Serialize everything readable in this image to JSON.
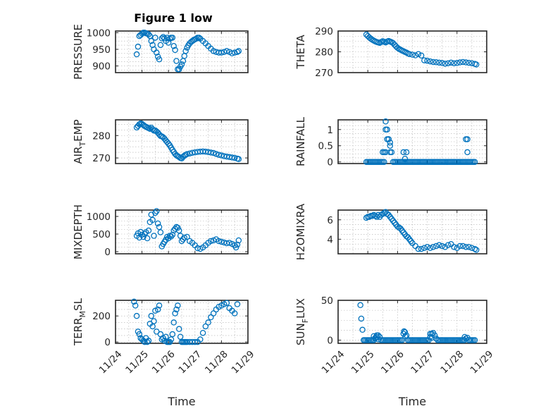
{
  "figure_title": "Figure 1 low",
  "colors": {
    "marker": "#0072bd",
    "axes": "#262626",
    "grid": "#b0b0b0"
  },
  "chart_data": [
    {
      "type": "scatter",
      "title": "Figure 1 low",
      "xlabel": "",
      "ylabel": "PRESSURE",
      "xlim": [
        0,
        5
      ],
      "ylim": [
        880,
        1005
      ],
      "yticks": [
        900,
        950,
        1000
      ],
      "x": [
        0.8,
        0.85,
        0.9,
        0.95,
        1.0,
        1.05,
        1.1,
        1.15,
        1.2,
        1.25,
        1.3,
        1.35,
        1.4,
        1.45,
        1.5,
        1.55,
        1.6,
        1.65,
        1.7,
        1.75,
        1.8,
        1.85,
        1.9,
        1.95,
        2.0,
        2.05,
        2.1,
        2.15,
        2.2,
        2.25,
        2.3,
        2.35,
        2.4,
        2.45,
        2.5,
        2.55,
        2.6,
        2.65,
        2.7,
        2.75,
        2.8,
        2.85,
        2.9,
        2.95,
        3.0,
        3.05,
        3.1,
        3.15,
        3.2,
        3.3,
        3.4,
        3.5,
        3.6,
        3.7,
        3.8,
        3.9,
        4.0,
        4.1,
        4.2,
        4.3,
        4.4,
        4.5,
        4.6,
        4.65
      ],
      "y": [
        935,
        958,
        990,
        993,
        997,
        1000,
        1000,
        998,
        997,
        995,
        990,
        975,
        963,
        950,
        985,
        940,
        928,
        920,
        963,
        983,
        987,
        983,
        975,
        985,
        970,
        982,
        985,
        985,
        960,
        948,
        915,
        890,
        890,
        898,
        905,
        915,
        930,
        945,
        955,
        962,
        968,
        972,
        975,
        978,
        980,
        982,
        985,
        985,
        982,
        975,
        968,
        960,
        952,
        945,
        942,
        940,
        940,
        942,
        945,
        942,
        938,
        940,
        942,
        945
      ]
    },
    {
      "type": "scatter",
      "title": "",
      "xlabel": "",
      "ylabel": "THETA",
      "xlim": [
        0,
        5
      ],
      "ylim": [
        270,
        290
      ],
      "yticks": [
        270,
        280,
        290
      ],
      "x": [
        0.95,
        1.0,
        1.05,
        1.1,
        1.15,
        1.2,
        1.25,
        1.3,
        1.35,
        1.4,
        1.45,
        1.5,
        1.55,
        1.6,
        1.65,
        1.7,
        1.75,
        1.8,
        1.85,
        1.9,
        1.95,
        2.0,
        2.05,
        2.1,
        2.15,
        2.2,
        2.25,
        2.3,
        2.35,
        2.4,
        2.5,
        2.6,
        2.7,
        2.8,
        2.9,
        3.0,
        3.1,
        3.2,
        3.3,
        3.4,
        3.5,
        3.6,
        3.7,
        3.8,
        3.9,
        4.0,
        4.1,
        4.2,
        4.3,
        4.4,
        4.5,
        4.6,
        4.65
      ],
      "y": [
        288.3,
        287.6,
        286.9,
        286.3,
        285.8,
        285.4,
        285.0,
        284.7,
        284.5,
        284.3,
        284.7,
        285.1,
        284.8,
        284.5,
        284.9,
        285.2,
        284.9,
        284.6,
        284.2,
        283.4,
        282.6,
        281.9,
        281.4,
        281.0,
        280.6,
        280.3,
        279.9,
        279.6,
        279.2,
        278.9,
        278.6,
        278.3,
        278.9,
        278.2,
        275.9,
        275.7,
        275.4,
        275.1,
        275.0,
        274.8,
        274.6,
        274.3,
        274.5,
        274.8,
        274.5,
        274.6,
        274.9,
        275.1,
        274.9,
        274.7,
        274.5,
        274.2,
        273.9
      ]
    },
    {
      "type": "scatter",
      "title": "",
      "xlabel": "",
      "ylabel": "AIR_TEMP",
      "xlim": [
        0,
        5
      ],
      "ylim": [
        267.5,
        287
      ],
      "yticks": [
        270,
        280
      ],
      "x": [
        0.8,
        0.85,
        0.9,
        0.95,
        1.0,
        1.05,
        1.1,
        1.15,
        1.2,
        1.25,
        1.3,
        1.35,
        1.4,
        1.45,
        1.5,
        1.55,
        1.6,
        1.65,
        1.7,
        1.75,
        1.8,
        1.85,
        1.9,
        1.95,
        2.0,
        2.05,
        2.1,
        2.15,
        2.2,
        2.25,
        2.3,
        2.35,
        2.4,
        2.45,
        2.5,
        2.55,
        2.6,
        2.65,
        2.7,
        2.8,
        2.9,
        3.0,
        3.1,
        3.2,
        3.3,
        3.4,
        3.5,
        3.6,
        3.7,
        3.8,
        3.9,
        4.0,
        4.1,
        4.2,
        4.3,
        4.4,
        4.5,
        4.6,
        4.65
      ],
      "y": [
        283.6,
        284.3,
        285.0,
        285.4,
        285.2,
        284.7,
        284.2,
        283.9,
        283.6,
        283.3,
        283.0,
        283.5,
        282.8,
        282.2,
        282.3,
        281.8,
        281.3,
        280.5,
        279.8,
        279.6,
        279.2,
        278.6,
        277.8,
        277.1,
        276.4,
        275.6,
        274.6,
        273.6,
        272.7,
        271.8,
        271.2,
        270.8,
        270.4,
        270.0,
        269.8,
        270.5,
        271.0,
        271.4,
        271.7,
        272.0,
        272.3,
        272.5,
        272.7,
        272.8,
        272.9,
        272.8,
        272.6,
        272.4,
        272.2,
        271.8,
        271.4,
        271.1,
        270.8,
        270.6,
        270.4,
        270.2,
        270.0,
        269.7,
        269.5
      ]
    },
    {
      "type": "scatter",
      "title": "",
      "xlabel": "",
      "ylabel": "RAINFALL",
      "xlim": [
        0,
        5
      ],
      "ylim": [
        -0.05,
        1.3
      ],
      "yticks": [
        0,
        0.5,
        1
      ],
      "x": [
        0.95,
        1.0,
        1.05,
        1.1,
        1.15,
        1.2,
        1.25,
        1.3,
        1.35,
        1.4,
        1.45,
        1.5,
        1.55,
        1.6,
        1.6,
        1.6,
        1.65,
        1.7,
        1.75,
        1.8,
        1.85,
        1.9,
        1.95,
        2.0,
        2.05,
        2.1,
        2.15,
        2.2,
        2.25,
        2.3,
        2.35,
        2.4,
        2.45,
        2.5,
        2.55,
        2.6,
        2.65,
        2.7,
        2.75,
        2.8,
        2.85,
        2.9,
        2.95,
        3.0,
        3.05,
        3.1,
        3.15,
        3.2,
        3.25,
        3.3,
        3.35,
        3.4,
        3.45,
        3.5,
        3.55,
        3.6,
        3.65,
        3.7,
        3.75,
        3.8,
        3.85,
        3.9,
        3.95,
        4.0,
        4.05,
        4.1,
        4.15,
        4.2,
        4.25,
        4.3,
        4.35,
        4.4,
        4.45,
        4.5,
        4.55,
        4.6,
        1.5,
        1.55,
        1.65,
        1.7,
        1.75,
        2.2,
        2.25,
        2.3,
        1.75,
        4.3,
        4.35,
        4.35
      ],
      "y": [
        0,
        0,
        0,
        0,
        0,
        0,
        0,
        0,
        0,
        0,
        0,
        0,
        0,
        1.0,
        1.25,
        0.3,
        1.0,
        0.7,
        0.5,
        0.3,
        0,
        0,
        0,
        0,
        0,
        0,
        0,
        0,
        0,
        0,
        0,
        0,
        0,
        0,
        0,
        0,
        0,
        0,
        0,
        0,
        0,
        0,
        0,
        0,
        0,
        0,
        0,
        0,
        0,
        0,
        0,
        0,
        0,
        0,
        0,
        0,
        0,
        0,
        0,
        0,
        0,
        0,
        0,
        0,
        0,
        0,
        0,
        0,
        0,
        0,
        0,
        0,
        0,
        0,
        0,
        0,
        0.3,
        0.3,
        0.7,
        0.7,
        0.3,
        0.3,
        0.1,
        0.3,
        0.6,
        0.7,
        0.7,
        0.3
      ]
    },
    {
      "type": "scatter",
      "title": "",
      "xlabel": "",
      "ylabel": "MIXDEPTH",
      "xlim": [
        0,
        5
      ],
      "ylim": [
        -60,
        1180
      ],
      "yticks": [
        0,
        500,
        1000
      ],
      "x": [
        0.8,
        0.85,
        0.9,
        0.95,
        1.0,
        1.05,
        1.1,
        1.15,
        1.2,
        1.25,
        1.3,
        1.35,
        1.4,
        1.45,
        1.5,
        1.55,
        1.6,
        1.65,
        1.7,
        1.75,
        1.8,
        1.85,
        1.9,
        1.95,
        2.0,
        2.05,
        2.1,
        2.15,
        2.2,
        2.25,
        2.3,
        2.35,
        2.4,
        2.45,
        2.5,
        2.55,
        2.6,
        2.7,
        2.8,
        2.9,
        3.0,
        3.1,
        3.2,
        3.3,
        3.4,
        3.5,
        3.6,
        3.7,
        3.8,
        3.9,
        4.0,
        4.1,
        4.2,
        4.3,
        4.4,
        4.5,
        4.55,
        4.6,
        4.65
      ],
      "y": [
        450,
        520,
        400,
        560,
        480,
        420,
        500,
        550,
        380,
        600,
        840,
        1050,
        900,
        450,
        1100,
        1150,
        800,
        700,
        550,
        150,
        220,
        280,
        340,
        420,
        380,
        450,
        430,
        480,
        600,
        650,
        700,
        680,
        600,
        450,
        300,
        350,
        400,
        420,
        300,
        250,
        180,
        100,
        80,
        120,
        180,
        250,
        300,
        320,
        350,
        300,
        280,
        260,
        240,
        250,
        220,
        180,
        120,
        200,
        320
      ]
    },
    {
      "type": "scatter",
      "title": "",
      "xlabel": "",
      "ylabel": "H2OMIXRA",
      "xlim": [
        0,
        5
      ],
      "ylim": [
        2.5,
        7
      ],
      "yticks": [
        4,
        6
      ],
      "x": [
        0.95,
        1.0,
        1.05,
        1.1,
        1.15,
        1.2,
        1.25,
        1.3,
        1.35,
        1.4,
        1.45,
        1.5,
        1.55,
        1.6,
        1.65,
        1.7,
        1.75,
        1.8,
        1.85,
        1.9,
        1.95,
        2.0,
        2.05,
        2.1,
        2.15,
        2.2,
        2.25,
        2.3,
        2.35,
        2.4,
        2.45,
        2.5,
        2.6,
        2.7,
        2.8,
        2.9,
        3.0,
        3.1,
        3.2,
        3.3,
        3.4,
        3.5,
        3.6,
        3.7,
        3.8,
        3.9,
        4.0,
        4.1,
        4.2,
        4.3,
        4.4,
        4.5,
        4.6,
        4.65
      ],
      "y": [
        6.2,
        6.3,
        6.3,
        6.4,
        6.4,
        6.5,
        6.4,
        6.3,
        6.5,
        6.3,
        6.5,
        6.6,
        6.7,
        6.8,
        6.6,
        6.5,
        6.3,
        6.1,
        5.9,
        5.7,
        5.5,
        5.3,
        5.2,
        5.1,
        4.9,
        4.7,
        4.5,
        4.3,
        4.2,
        4.0,
        3.8,
        3.6,
        3.3,
        3.0,
        3.0,
        3.1,
        3.2,
        3.1,
        3.2,
        3.3,
        3.4,
        3.3,
        3.2,
        3.4,
        3.5,
        3.2,
        3.1,
        3.3,
        3.3,
        3.2,
        3.2,
        3.1,
        3.0,
        2.9
      ]
    },
    {
      "type": "scatter",
      "title": "",
      "xlabel": "Time",
      "ylabel": "TERR_MSL",
      "xlim": [
        0,
        5
      ],
      "ylim": [
        -10,
        320
      ],
      "yticks": [
        0,
        200
      ],
      "xticklabels": [
        "11/24",
        "11/25",
        "11/26",
        "11/27",
        "11/28",
        "11/29"
      ],
      "x": [
        0.7,
        0.75,
        0.8,
        0.85,
        0.9,
        0.95,
        1.0,
        1.05,
        1.1,
        1.15,
        1.2,
        1.25,
        1.3,
        1.35,
        1.4,
        1.45,
        1.5,
        1.55,
        1.6,
        1.65,
        1.7,
        1.75,
        1.8,
        1.85,
        1.9,
        1.95,
        2.0,
        2.05,
        2.1,
        2.15,
        2.2,
        2.25,
        2.3,
        2.35,
        2.4,
        2.45,
        2.5,
        2.55,
        2.6,
        2.65,
        2.7,
        2.8,
        2.9,
        3.0,
        3.1,
        3.2,
        3.3,
        3.4,
        3.5,
        3.6,
        3.7,
        3.8,
        3.9,
        4.0,
        4.1,
        4.2,
        4.3,
        4.4,
        4.5,
        4.6
      ],
      "y": [
        310,
        280,
        200,
        80,
        60,
        30,
        20,
        10,
        0,
        30,
        0,
        10,
        140,
        200,
        120,
        160,
        240,
        80,
        250,
        280,
        60,
        20,
        30,
        10,
        40,
        0,
        0,
        0,
        20,
        60,
        150,
        220,
        250,
        280,
        100,
        40,
        0,
        0,
        0,
        0,
        0,
        0,
        0,
        0,
        0,
        20,
        70,
        120,
        150,
        190,
        220,
        250,
        270,
        280,
        290,
        300,
        260,
        240,
        220,
        290
      ]
    },
    {
      "type": "scatter",
      "title": "",
      "xlabel": "Time",
      "ylabel": "SUN_FLUX",
      "xlim": [
        0,
        5
      ],
      "ylim": [
        -4,
        50
      ],
      "yticks": [
        0,
        50
      ],
      "xticklabels": [
        "11/24",
        "11/25",
        "11/26",
        "11/27",
        "11/28",
        "11/29"
      ],
      "x": [
        0.75,
        0.78,
        0.82,
        0.86,
        0.9,
        0.95,
        1.0,
        1.05,
        1.1,
        1.15,
        1.2,
        1.25,
        1.3,
        1.35,
        1.4,
        1.45,
        1.5,
        1.55,
        1.6,
        1.65,
        1.7,
        1.75,
        1.8,
        1.85,
        1.9,
        1.95,
        2.0,
        2.05,
        2.1,
        2.15,
        2.2,
        2.25,
        2.3,
        2.35,
        2.4,
        2.45,
        2.5,
        2.55,
        2.6,
        2.65,
        2.7,
        2.75,
        2.8,
        2.85,
        2.9,
        2.95,
        3.0,
        3.05,
        3.1,
        3.15,
        3.2,
        3.25,
        3.3,
        3.35,
        3.4,
        3.45,
        3.5,
        3.55,
        3.6,
        3.65,
        3.7,
        3.75,
        3.8,
        3.85,
        3.9,
        3.95,
        4.0,
        4.05,
        4.1,
        4.15,
        4.2,
        4.25,
        4.3,
        4.35,
        4.4,
        4.45,
        4.5,
        4.55,
        4.6,
        1.2,
        1.25,
        1.3,
        1.35,
        2.22,
        2.26,
        3.1,
        3.15,
        4.26
      ],
      "y": [
        44,
        27,
        13,
        0,
        0,
        0,
        0,
        0,
        0,
        0,
        0,
        2,
        4,
        6,
        4,
        0,
        0,
        0,
        0,
        0,
        0,
        0,
        0,
        0,
        0,
        0,
        0,
        0,
        0,
        0,
        8,
        10,
        6,
        0,
        0,
        0,
        0,
        0,
        0,
        0,
        0,
        0,
        0,
        0,
        0,
        0,
        0,
        0,
        4,
        8,
        9,
        6,
        2,
        0,
        0,
        0,
        0,
        0,
        0,
        0,
        0,
        0,
        0,
        0,
        0,
        0,
        0,
        0,
        0,
        0,
        0,
        0,
        2,
        3,
        0,
        0,
        0,
        0,
        0,
        5,
        3,
        6,
        1,
        11,
        5,
        8,
        3,
        4
      ]
    }
  ]
}
